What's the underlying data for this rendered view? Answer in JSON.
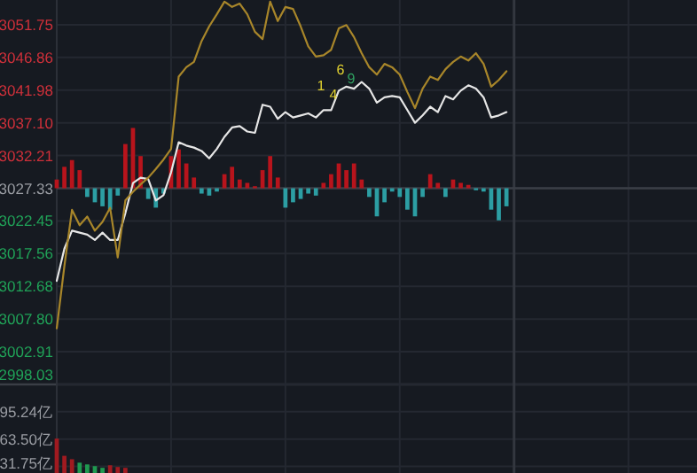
{
  "chart_data": [
    {
      "type": "line",
      "categories": [
        null,
        null,
        null,
        null,
        null,
        null,
        null,
        null,
        null,
        null,
        null,
        null,
        null,
        null,
        null,
        null,
        null,
        null,
        null,
        null,
        null,
        null,
        null,
        null,
        null,
        null,
        null,
        null,
        null,
        null,
        null,
        null,
        null,
        null,
        null,
        null,
        null,
        null,
        null,
        null,
        null,
        null,
        null,
        null,
        null,
        null,
        null,
        null,
        null,
        null,
        null,
        null,
        null,
        null,
        null,
        null,
        null,
        null,
        null,
        null,
        null,
        null,
        null,
        null,
        null,
        null,
        null,
        null,
        null,
        null,
        null,
        null,
        null,
        null,
        null,
        null,
        null,
        null,
        null,
        null,
        null,
        null,
        null,
        null,
        null
      ],
      "ylim": [
        2998.03,
        3055.44
      ],
      "yticks": [
        2998.03,
        3002.91,
        {
          "value": 3007.8,
          "label": "3007.80"
        },
        3012.68,
        3017.56,
        3022.45,
        3027.33,
        3032.21,
        {
          "value": 3037.1,
          "label": "3037.10"
        },
        3041.98,
        3046.86,
        3051.75
      ],
      "annotations": [
        "1",
        "4",
        "6",
        "9"
      ],
      "tick_labels": "y",
      "grid": true,
      "ref_lines": [
        {
          "axis": "y",
          "value": 3027.33,
          "color": "#3a3e46"
        }
      ],
      "series": [
        {
          "type": "bar",
          "base": [
            3027.33,
            3027.33,
            3027.33,
            3027.33,
            3027.33,
            3027.33,
            3027.33,
            3027.33,
            3027.33,
            3027.33,
            3027.33,
            3027.33,
            3027.33,
            3027.33,
            3027.33,
            3027.33,
            3027.33,
            3027.33,
            3027.33,
            3027.33,
            3027.33,
            3027.33,
            3027.33,
            3027.33,
            3027.33,
            3027.33,
            3027.33,
            3027.33,
            3027.33,
            3027.33,
            3027.33,
            3027.33,
            3027.33,
            3027.33,
            3027.33,
            3027.33,
            3027.33,
            3027.33,
            3027.33,
            3027.33,
            3027.33,
            3027.33,
            3027.33,
            3027.33,
            3027.33,
            3027.33,
            3027.33,
            3027.33,
            3027.33,
            3027.33,
            3027.33,
            3027.33,
            3027.33,
            3027.33,
            3027.33,
            3027.33,
            3027.33,
            3027.33,
            3027.33,
            3027.33,
            null,
            null,
            null,
            null,
            null,
            null,
            null,
            null,
            null,
            null,
            null,
            null,
            null,
            null,
            null,
            null,
            null,
            null,
            null,
            null,
            null,
            null,
            null,
            null,
            null
          ],
          "values": [
            1.3,
            3.2,
            4.2,
            2.7,
            -1.3,
            -2.1,
            -2.7,
            -3.2,
            -1.1,
            6.6,
            9.0,
            4.8,
            -1.6,
            -2.9,
            -0.8,
            4.8,
            5.8,
            3.7,
            1.6,
            -0.8,
            -1.1,
            -0.5,
            2.1,
            3.2,
            1.3,
            0.8,
            0.3,
            2.7,
            4.8,
            1.6,
            -2.9,
            -2.1,
            -1.6,
            -0.8,
            -1.1,
            0.8,
            2.1,
            3.7,
            2.7,
            3.7,
            1.3,
            -1.3,
            -4.2,
            -2.1,
            -0.5,
            -1.3,
            -3.2,
            -4.2,
            -1.3,
            2.1,
            0.8,
            -1.3,
            1.3,
            0.8,
            0.5,
            -0.3,
            -0.5,
            -3.2,
            -4.8,
            -2.7,
            null,
            null,
            null,
            null,
            null,
            null,
            null,
            null,
            null,
            null,
            null,
            null,
            null,
            null,
            null,
            null,
            null,
            null,
            null,
            null,
            null,
            null,
            null,
            null,
            null
          ],
          "colors": [
            "#b8141c",
            "#b8141c",
            "#b8141c",
            "#b8141c",
            "#2c9ea3",
            "#2c9ea3",
            "#2c9ea3",
            "#2c9ea3",
            "#2c9ea3",
            "#b8141c",
            "#b8141c",
            "#b8141c",
            "#2c9ea3",
            "#2c9ea3",
            "#2c9ea3",
            "#b8141c",
            "#b8141c",
            "#b8141c",
            "#b8141c",
            "#2c9ea3",
            "#2c9ea3",
            "#2c9ea3",
            "#b8141c",
            "#b8141c",
            "#b8141c",
            "#b8141c",
            "#b8141c",
            "#b8141c",
            "#b8141c",
            "#b8141c",
            "#2c9ea3",
            "#2c9ea3",
            "#2c9ea3",
            "#2c9ea3",
            "#2c9ea3",
            "#b8141c",
            "#b8141c",
            "#b8141c",
            "#b8141c",
            "#b8141c",
            "#b8141c",
            "#2c9ea3",
            "#2c9ea3",
            "#2c9ea3",
            "#2c9ea3",
            "#2c9ea3",
            "#2c9ea3",
            "#2c9ea3",
            "#2c9ea3",
            "#b8141c",
            "#b8141c",
            "#2c9ea3",
            "#b8141c",
            "#b8141c",
            "#b8141c",
            "#2c9ea3",
            "#2c9ea3",
            "#2c9ea3",
            "#2c9ea3",
            "#2c9ea3",
            null,
            null,
            null,
            null,
            null,
            null,
            null,
            null,
            null,
            null,
            null,
            null,
            null,
            null,
            null,
            null,
            null,
            null,
            null,
            null,
            null,
            null,
            null,
            null,
            null
          ]
        },
        {
          "color": "#e6e6e6",
          "values": [
            3013.5,
            3018.3,
            3021.0,
            3020.7,
            3020.4,
            3019.6,
            3020.7,
            3019.6,
            3019.6,
            3023.6,
            3028.1,
            3028.9,
            3028.7,
            3025.5,
            3026.3,
            3029.7,
            3034.2,
            3033.7,
            3033.4,
            3032.9,
            3031.8,
            3033.2,
            3035.0,
            3036.4,
            3036.6,
            3035.8,
            3035.6,
            3039.8,
            3039.5,
            3037.7,
            3038.7,
            3037.9,
            3038.2,
            3038.5,
            3037.9,
            3039.0,
            3039.0,
            3041.9,
            3042.5,
            3042.2,
            3043.2,
            3042.2,
            3040.1,
            3040.9,
            3041.1,
            3040.9,
            3039.0,
            3037.1,
            3038.2,
            3039.5,
            3038.7,
            3041.1,
            3040.6,
            3041.9,
            3042.7,
            3042.2,
            3040.9,
            3037.9,
            3038.2,
            3038.7,
            null,
            null,
            null,
            null,
            null,
            null,
            null,
            null,
            null,
            null,
            null,
            null,
            null,
            null,
            null,
            null,
            null,
            null,
            null,
            null,
            null,
            null,
            null,
            null,
            null
          ]
        },
        {
          "color": "#a8862a",
          "values": [
            3006.4,
            3015.7,
            3024.1,
            3021.8,
            3023.1,
            3021.0,
            3022.3,
            3024.4,
            3017.0,
            3025.5,
            3026.8,
            3027.9,
            3028.9,
            3030.2,
            3031.6,
            3033.2,
            3044.0,
            3045.4,
            3046.2,
            3049.3,
            3051.5,
            3053.3,
            3055.2,
            3054.4,
            3054.9,
            3053.3,
            3050.7,
            3049.6,
            3055.2,
            3052.3,
            3054.4,
            3054.1,
            3051.5,
            3048.5,
            3047.0,
            3047.2,
            3048.0,
            3051.2,
            3051.7,
            3049.9,
            3047.5,
            3045.4,
            3044.3,
            3045.9,
            3045.4,
            3044.3,
            3041.7,
            3039.3,
            3042.2,
            3044.0,
            3043.5,
            3045.1,
            3046.2,
            3047.0,
            3046.4,
            3047.5,
            3045.9,
            3042.5,
            3043.5,
            3044.8,
            null,
            null,
            null,
            null,
            null,
            null,
            null,
            null,
            null,
            null,
            null,
            null,
            null,
            null,
            null,
            null,
            null,
            null,
            null,
            null,
            null,
            null,
            null,
            null,
            null
          ]
        }
      ]
    },
    {
      "type": "bar",
      "categories": [
        null,
        null,
        null,
        null,
        null,
        null,
        null,
        null,
        null,
        null,
        null,
        null,
        null,
        null,
        null,
        null,
        null,
        null,
        null,
        null,
        null,
        null,
        null,
        null,
        null,
        null,
        null,
        null,
        null,
        null,
        null,
        null,
        null,
        null,
        null,
        null,
        null,
        null,
        null,
        null,
        null,
        null,
        null,
        null,
        null,
        null,
        null,
        null,
        null,
        null,
        null,
        null,
        null,
        null,
        null,
        null,
        null,
        null,
        null,
        null,
        null,
        null,
        null,
        null,
        null,
        null,
        null,
        null,
        null,
        null,
        null,
        null,
        null,
        null,
        null,
        null,
        null,
        null,
        null,
        null,
        null,
        null,
        null,
        null,
        null
      ],
      "ylim": [
        24,
        127
      ],
      "yticks": [
        {
          "value": 31.75,
          "label": "31.75亿"
        },
        {
          "value": 63.5,
          "label": "63.50亿"
        },
        {
          "value": 95.24,
          "label": "95.24亿"
        }
      ],
      "tick_labels": "y",
      "grid": true,
      "values": [
        64,
        44,
        40,
        36,
        34,
        32,
        30,
        33,
        31,
        30,
        null,
        null,
        null,
        null,
        null,
        null,
        null,
        null,
        null,
        null,
        null,
        null,
        null,
        null,
        null,
        null,
        null,
        null,
        null,
        null,
        null,
        null,
        null,
        null,
        null,
        null,
        null,
        null,
        null,
        null,
        null,
        null,
        null,
        null,
        null,
        null,
        null,
        null,
        null,
        null,
        null,
        null,
        null,
        null,
        null,
        null,
        null,
        null,
        null,
        null,
        null,
        null,
        null,
        null,
        null,
        null,
        null,
        null,
        null,
        null,
        null,
        null,
        null,
        null,
        null,
        null,
        null,
        null,
        null,
        null,
        null,
        null,
        null,
        null,
        null
      ],
      "colors": [
        "#a01a20",
        "#a01a20",
        "#a01a20",
        "#1f9a50",
        "#1f9a50",
        "#1f9a50",
        "#1f9a50",
        "#a01a20",
        "#a01a20",
        "#a01a20",
        null,
        null,
        null,
        null,
        null,
        null,
        null,
        null,
        null,
        null,
        null,
        null,
        null,
        null,
        null,
        null,
        null,
        null,
        null,
        null,
        null,
        null,
        null,
        null,
        null,
        null,
        null,
        null,
        null,
        null,
        null,
        null,
        null,
        null,
        null,
        null,
        null,
        null,
        null,
        null,
        null,
        null,
        null,
        null,
        null,
        null,
        null,
        null,
        null,
        null,
        null,
        null,
        null,
        null,
        null,
        null,
        null,
        null,
        null,
        null,
        null,
        null,
        null,
        null,
        null,
        null,
        null,
        null,
        null,
        null,
        null,
        null,
        null,
        null,
        null
      ]
    }
  ]
}
